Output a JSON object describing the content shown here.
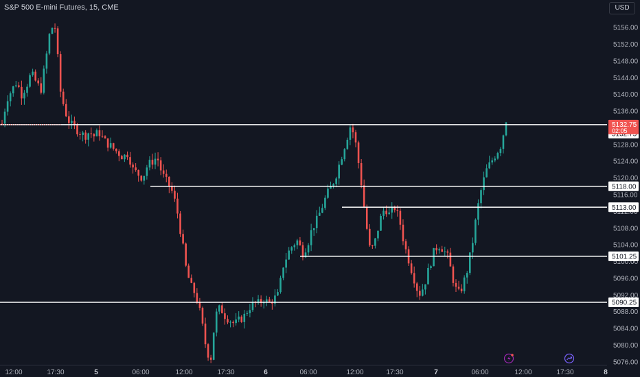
{
  "header": {
    "title": "S&P 500 E-mini Futures, 15, CME",
    "currency": "USD"
  },
  "colors": {
    "background": "#131722",
    "up": "#26a69a",
    "down": "#ef5350",
    "level_line": "#ffffff",
    "last_price_bg": "#f05350",
    "icon_purple": "#9c27b0"
  },
  "icons": [
    "lightning-icon",
    "forward-arrow-icon"
  ],
  "chart_data": {
    "type": "candlestick",
    "title": "S&P 500 E-mini Futures, 15, CME",
    "y_axis": {
      "ylim": [
        5074,
        5158
      ],
      "ticks": [
        "5156.00",
        "5152.00",
        "5148.00",
        "5144.00",
        "5140.00",
        "5136.00",
        "5128.00",
        "5124.00",
        "5120.00",
        "5116.00",
        "5112.00",
        "5108.00",
        "5104.00",
        "5100.00",
        "5096.00",
        "5092.00",
        "5088.00",
        "5084.00",
        "5080.00",
        "5076.00"
      ]
    },
    "x_axis": {
      "ticks": [
        {
          "label": "12:00",
          "bold": false
        },
        {
          "label": "17:30",
          "bold": false
        },
        {
          "label": "5",
          "bold": true
        },
        {
          "label": "06:00",
          "bold": false
        },
        {
          "label": "12:00",
          "bold": false
        },
        {
          "label": "17:30",
          "bold": false
        },
        {
          "label": "6",
          "bold": true
        },
        {
          "label": "06:00",
          "bold": false
        },
        {
          "label": "12:00",
          "bold": false
        },
        {
          "label": "17:30",
          "bold": false
        },
        {
          "label": "7",
          "bold": true
        },
        {
          "label": "06:00",
          "bold": false
        },
        {
          "label": "12:00",
          "bold": false
        },
        {
          "label": "17:30",
          "bold": false
        },
        {
          "label": "8",
          "bold": true
        }
      ]
    },
    "last_price": {
      "value": "5132.75",
      "countdown": "02:05"
    },
    "horizontal_levels": [
      {
        "value": 5132.75,
        "label": "5132.75"
      },
      {
        "value": 5118.0,
        "label": "5118.00"
      },
      {
        "value": 5113.0,
        "label": "5113.00"
      },
      {
        "value": 5101.25,
        "label": "5101.25"
      },
      {
        "value": 5090.25,
        "label": "5090.25"
      }
    ],
    "price_path": [
      5133,
      5139,
      5141,
      5143,
      5140,
      5142,
      5145,
      5143,
      5141,
      5148,
      5156,
      5156,
      5141,
      5136,
      5133,
      5132,
      5131,
      5130,
      5131,
      5130,
      5131,
      5129,
      5128,
      5127,
      5126,
      5125,
      5126,
      5122,
      5121,
      5120,
      5123,
      5124,
      5125,
      5121,
      5119,
      5117,
      5113,
      5106,
      5098,
      5094,
      5092,
      5087,
      5080,
      5076,
      5087,
      5089,
      5087,
      5086,
      5085,
      5086,
      5087,
      5089,
      5090,
      5090,
      5091,
      5090,
      5091,
      5092,
      5099,
      5102,
      5104,
      5105,
      5102,
      5104,
      5108,
      5110,
      5113,
      5116,
      5118,
      5121,
      5125,
      5129,
      5133,
      5128,
      5120,
      5110,
      5102,
      5105,
      5110,
      5113,
      5111,
      5113,
      5110,
      5104,
      5100,
      5096,
      5092,
      5094,
      5098,
      5102,
      5104,
      5103,
      5101,
      5096,
      5092,
      5094,
      5098,
      5104,
      5112,
      5118,
      5122,
      5124,
      5126,
      5128,
      5134
    ]
  }
}
